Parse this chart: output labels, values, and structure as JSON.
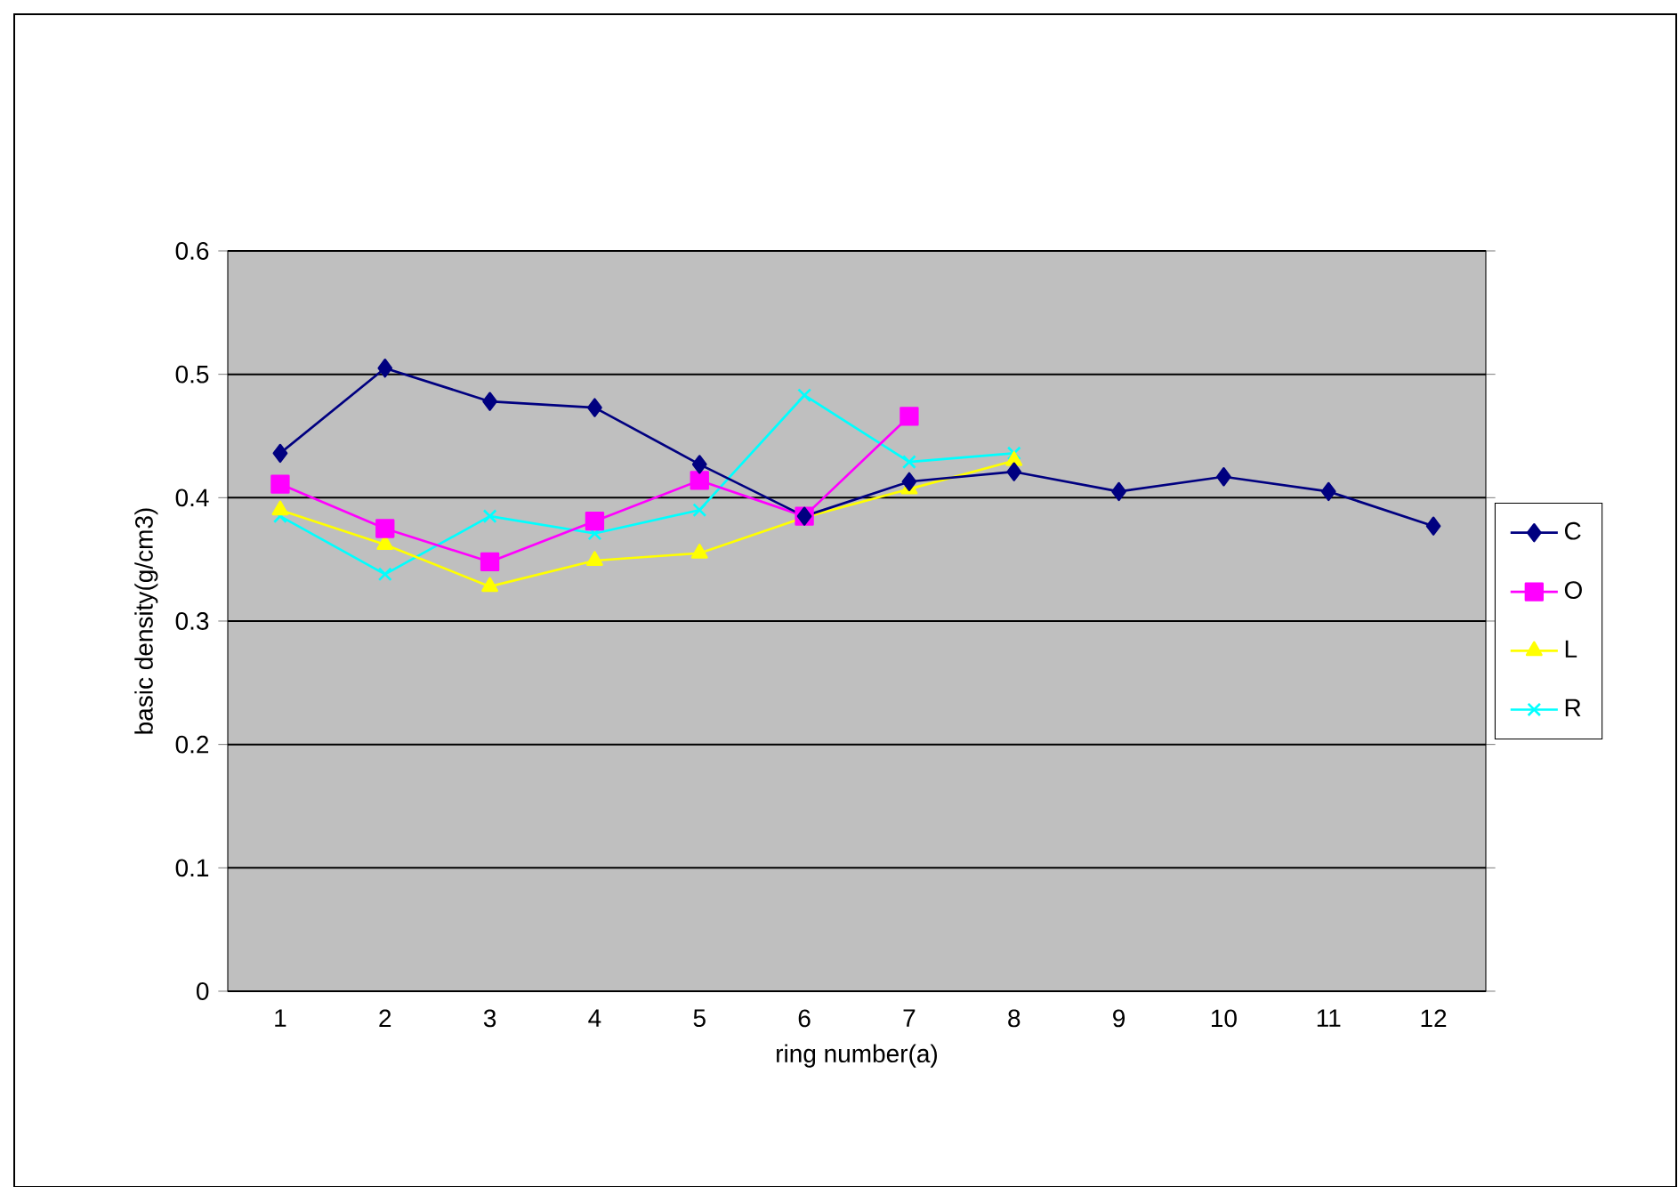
{
  "chart_data": {
    "type": "line",
    "xlabel": "ring number(a)",
    "ylabel": "basic density(g/cm3)",
    "categories": [
      "1",
      "2",
      "3",
      "4",
      "5",
      "6",
      "7",
      "8",
      "9",
      "10",
      "11",
      "12"
    ],
    "series": [
      {
        "name": "C",
        "color": "#000080",
        "marker": "diamond",
        "values": [
          0.436,
          0.505,
          0.478,
          0.473,
          0.427,
          0.385,
          0.413,
          0.421,
          0.405,
          0.417,
          0.405,
          0.377
        ]
      },
      {
        "name": "O",
        "color": "#ff00ff",
        "marker": "square",
        "values": [
          0.411,
          0.375,
          0.348,
          0.381,
          0.414,
          0.385,
          0.466,
          null,
          null,
          null,
          null,
          null
        ]
      },
      {
        "name": "L",
        "color": "#ffff00",
        "marker": "triangle",
        "values": [
          0.39,
          0.362,
          0.328,
          0.349,
          0.355,
          0.384,
          0.407,
          0.43,
          null,
          null,
          null,
          null
        ]
      },
      {
        "name": "R",
        "color": "#00ffff",
        "marker": "cross",
        "values": [
          0.385,
          0.338,
          0.385,
          0.371,
          0.39,
          0.483,
          0.429,
          0.436,
          null,
          null,
          null,
          null
        ]
      }
    ],
    "ylim": [
      0,
      0.6
    ],
    "yticks": [
      0,
      0.1,
      0.2,
      0.3,
      0.4,
      0.5,
      0.6
    ],
    "grid": "y",
    "legend": "right",
    "line_style": "solid"
  }
}
